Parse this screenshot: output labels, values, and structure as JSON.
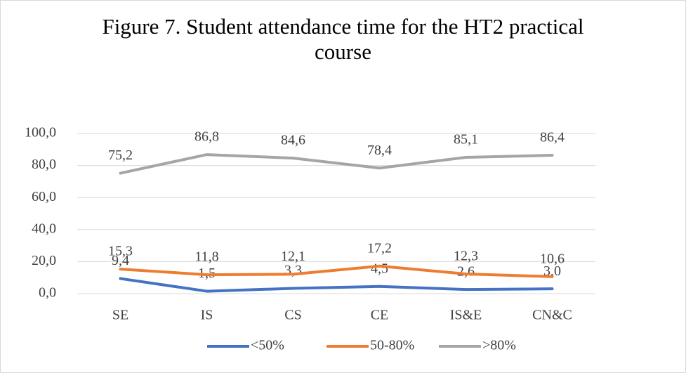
{
  "chart_data": {
    "type": "line",
    "title": "Figure 7. Student attendance time for the HT2 practical course",
    "categories": [
      "SE",
      "IS",
      "CS",
      "CE",
      "IS&E",
      "CN&C"
    ],
    "series": [
      {
        "name": "<50%",
        "color": "#4472c4",
        "values": [
          9.4,
          1.5,
          3.3,
          4.5,
          2.6,
          3.0
        ],
        "value_labels": [
          "9,4",
          "1,5",
          "3,3",
          "4,5",
          "2,6",
          "3,0"
        ]
      },
      {
        "name": "50-80%",
        "color": "#ed7d31",
        "values": [
          15.3,
          11.8,
          12.1,
          17.2,
          12.3,
          10.6
        ],
        "value_labels": [
          "15,3",
          "11,8",
          "12,1",
          "17,2",
          "12,3",
          "10,6"
        ]
      },
      {
        "name": ">80%",
        "color": "#a5a5a5",
        "values": [
          75.2,
          86.8,
          84.6,
          78.4,
          85.1,
          86.4
        ],
        "value_labels": [
          "75,2",
          "86,8",
          "84,6",
          "78,4",
          "85,1",
          "86,4"
        ]
      }
    ],
    "ylim": [
      0,
      100
    ],
    "yticks": [
      {
        "value": 0,
        "label": "0,0"
      },
      {
        "value": 20,
        "label": "20,0"
      },
      {
        "value": 40,
        "label": "40,0"
      },
      {
        "value": 60,
        "label": "60,0"
      },
      {
        "value": 80,
        "label": "80,0"
      },
      {
        "value": 100,
        "label": "100,0"
      }
    ],
    "grid": true,
    "legend": "bottom"
  }
}
